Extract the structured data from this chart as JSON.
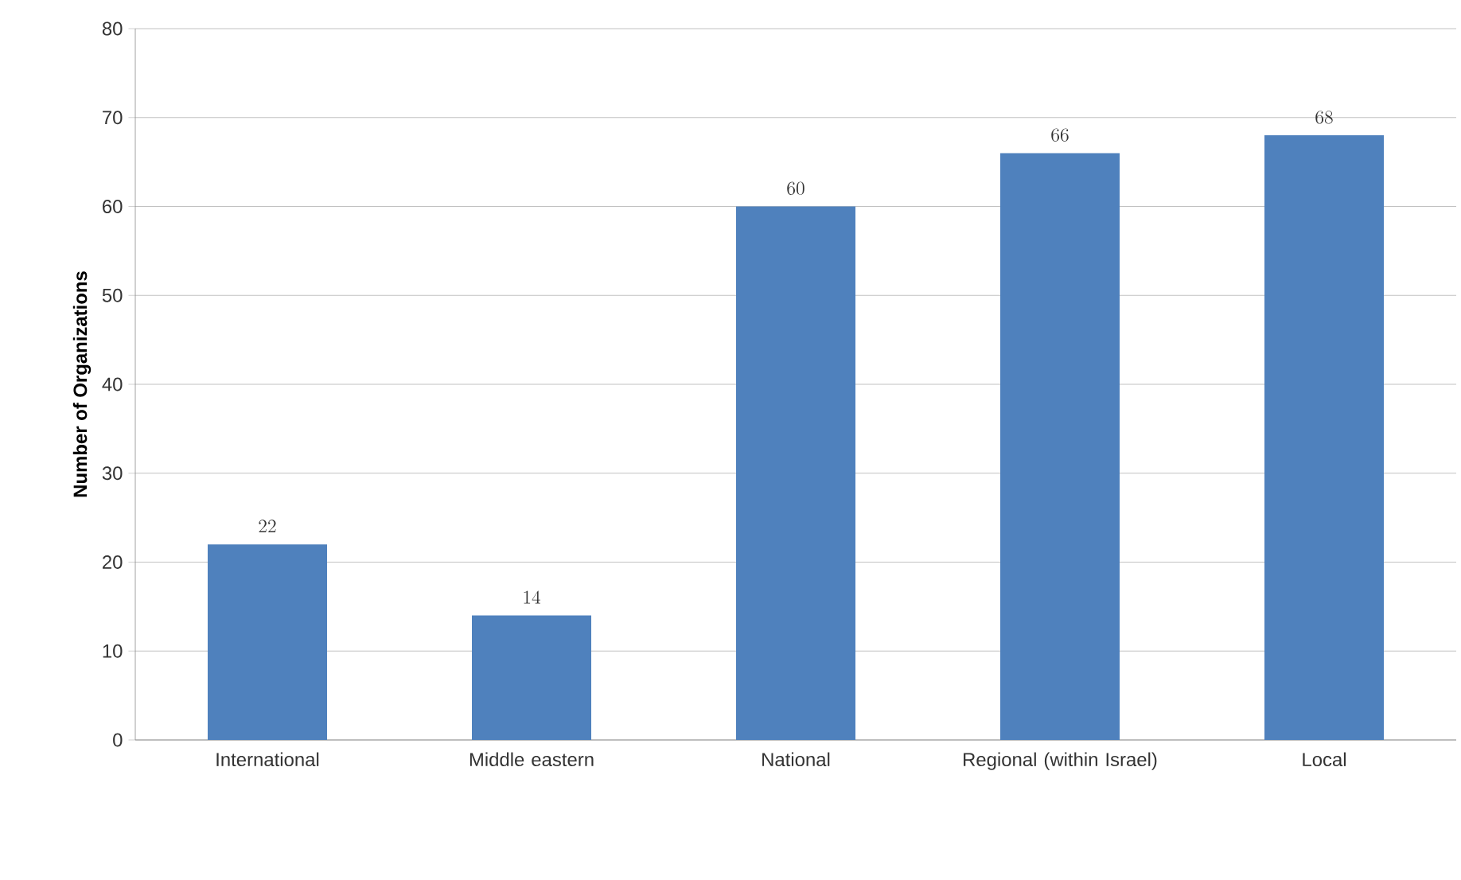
{
  "chart_data": {
    "type": "bar",
    "ylabel": "Number of Organizations",
    "categories": [
      "International",
      "Middle eastern",
      "National",
      "Regional (within Israel)",
      "Local"
    ],
    "values": [
      22,
      14,
      60,
      66,
      68
    ],
    "color": "#4f81bd",
    "ylim": [
      0,
      80
    ],
    "yticks": [
      0,
      10,
      20,
      30,
      40,
      50,
      60,
      70,
      80
    ],
    "grid": "y",
    "data_labels": true
  }
}
